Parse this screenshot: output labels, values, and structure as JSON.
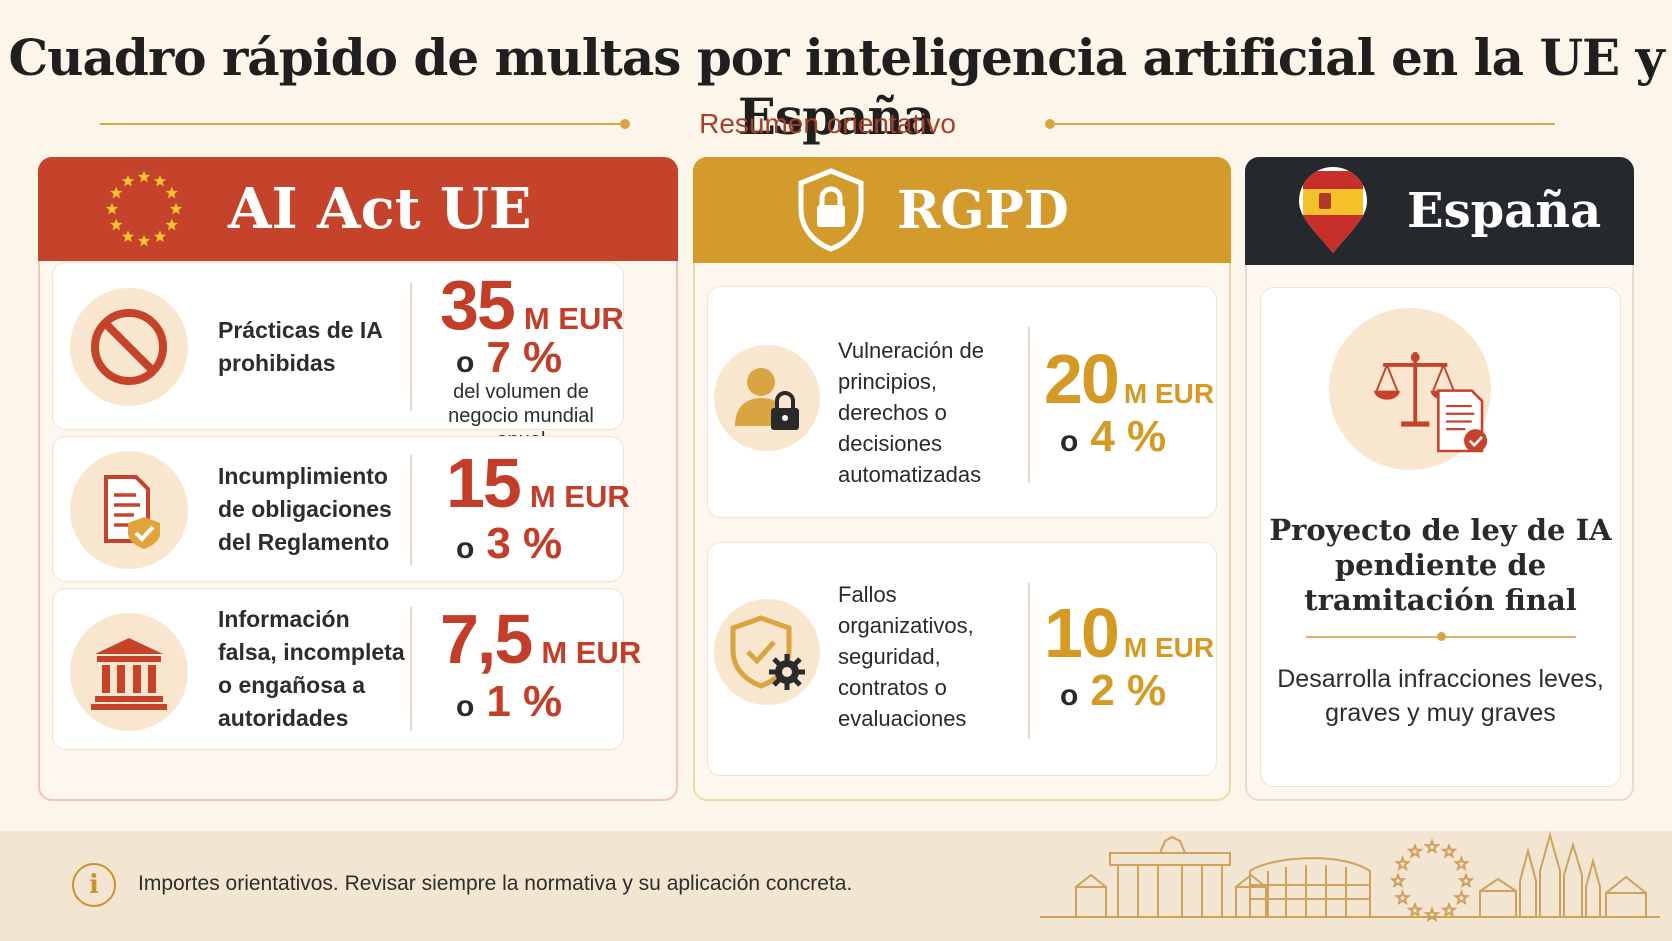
{
  "title": "Cuadro rápido de multas por inteligencia artificial en la UE y España",
  "subtitle": "Resumen orientativo",
  "columns": {
    "eu": {
      "header": "AI Act UE",
      "icon": "eu-stars-icon",
      "rows": [
        {
          "label": "Prácticas de IA prohibidas",
          "amount": "35",
          "unit": "M EUR",
          "or": "o",
          "percent": "7 %",
          "note": "del volumen de negocio mundial anual",
          "icon": "prohibited-icon"
        },
        {
          "label": "Incumplimiento de obligaciones del Reglamento",
          "amount": "15",
          "unit": "M EUR",
          "or": "o",
          "percent": "3 %",
          "icon": "document-shield-icon"
        },
        {
          "label": "Información falsa, incompleta o engañosa a autoridades",
          "amount": "7,5",
          "unit": "M EUR",
          "or": "o",
          "percent": "1 %",
          "icon": "institution-icon"
        }
      ]
    },
    "rgpd": {
      "header": "RGPD",
      "icon": "shield-lock-icon",
      "rows": [
        {
          "label": "Vulneración de principios, derechos o decisiones automatizadas",
          "amount": "20",
          "unit": "M EUR",
          "or": "o",
          "percent": "4 %",
          "icon": "user-lock-icon"
        },
        {
          "label": "Fallos organizativos, seguridad, contratos o evaluaciones",
          "amount": "10",
          "unit": "M EUR",
          "or": "o",
          "percent": "2 %",
          "icon": "shield-gear-icon"
        }
      ]
    },
    "es": {
      "header": "España",
      "icon": "spain-flag-pin-icon",
      "main": "Proyecto de ley de IA pendiente de tramitación final",
      "sub": "Desarrolla infracciones leves, graves y muy graves",
      "card_icon": "scales-document-icon"
    }
  },
  "footer": {
    "icon": "info-icon",
    "info_symbol": "i",
    "text": "Importes orientativos. Revisar siempre la normativa y su aplicación concreta."
  },
  "colors": {
    "eu": "#c5432b",
    "rgpd": "#d39b2b",
    "es": "#25282c",
    "accent": "#d9a441",
    "background": "#fbf5ea"
  }
}
